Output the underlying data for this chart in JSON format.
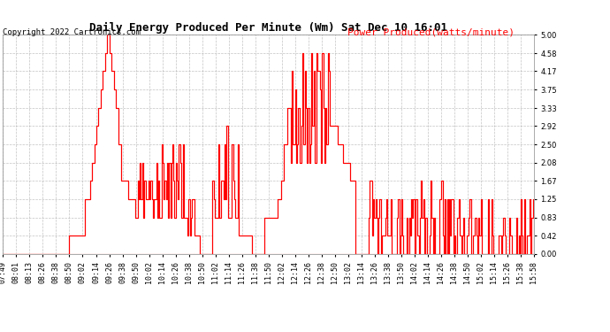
{
  "title": "Daily Energy Produced Per Minute (Wm) Sat Dec 10 16:01",
  "copyright": "Copyright 2022 Cartronics.com",
  "legend_label": "Power Produced(watts/minute)",
  "line_color": "#ff0000",
  "background_color": "#ffffff",
  "plot_bg_color": "#ffffff",
  "grid_color": "#aaaaaa",
  "ylim": [
    0.0,
    5.0
  ],
  "yticks": [
    0.0,
    0.42,
    0.83,
    1.25,
    1.67,
    2.08,
    2.5,
    2.92,
    3.33,
    3.75,
    4.17,
    4.58,
    5.0
  ],
  "xtick_labels": [
    "07:49",
    "08:01",
    "08:13",
    "08:26",
    "08:38",
    "08:50",
    "09:02",
    "09:14",
    "09:26",
    "09:38",
    "09:50",
    "10:02",
    "10:14",
    "10:26",
    "10:38",
    "10:50",
    "11:02",
    "11:14",
    "11:26",
    "11:38",
    "11:50",
    "12:02",
    "12:14",
    "12:26",
    "12:38",
    "12:50",
    "13:02",
    "13:14",
    "13:26",
    "13:38",
    "13:50",
    "14:02",
    "14:14",
    "14:26",
    "14:38",
    "14:50",
    "15:02",
    "15:14",
    "15:26",
    "15:38",
    "15:58"
  ],
  "title_fontsize": 9,
  "copyright_fontsize": 6.5,
  "legend_fontsize": 8,
  "tick_fontsize": 6
}
